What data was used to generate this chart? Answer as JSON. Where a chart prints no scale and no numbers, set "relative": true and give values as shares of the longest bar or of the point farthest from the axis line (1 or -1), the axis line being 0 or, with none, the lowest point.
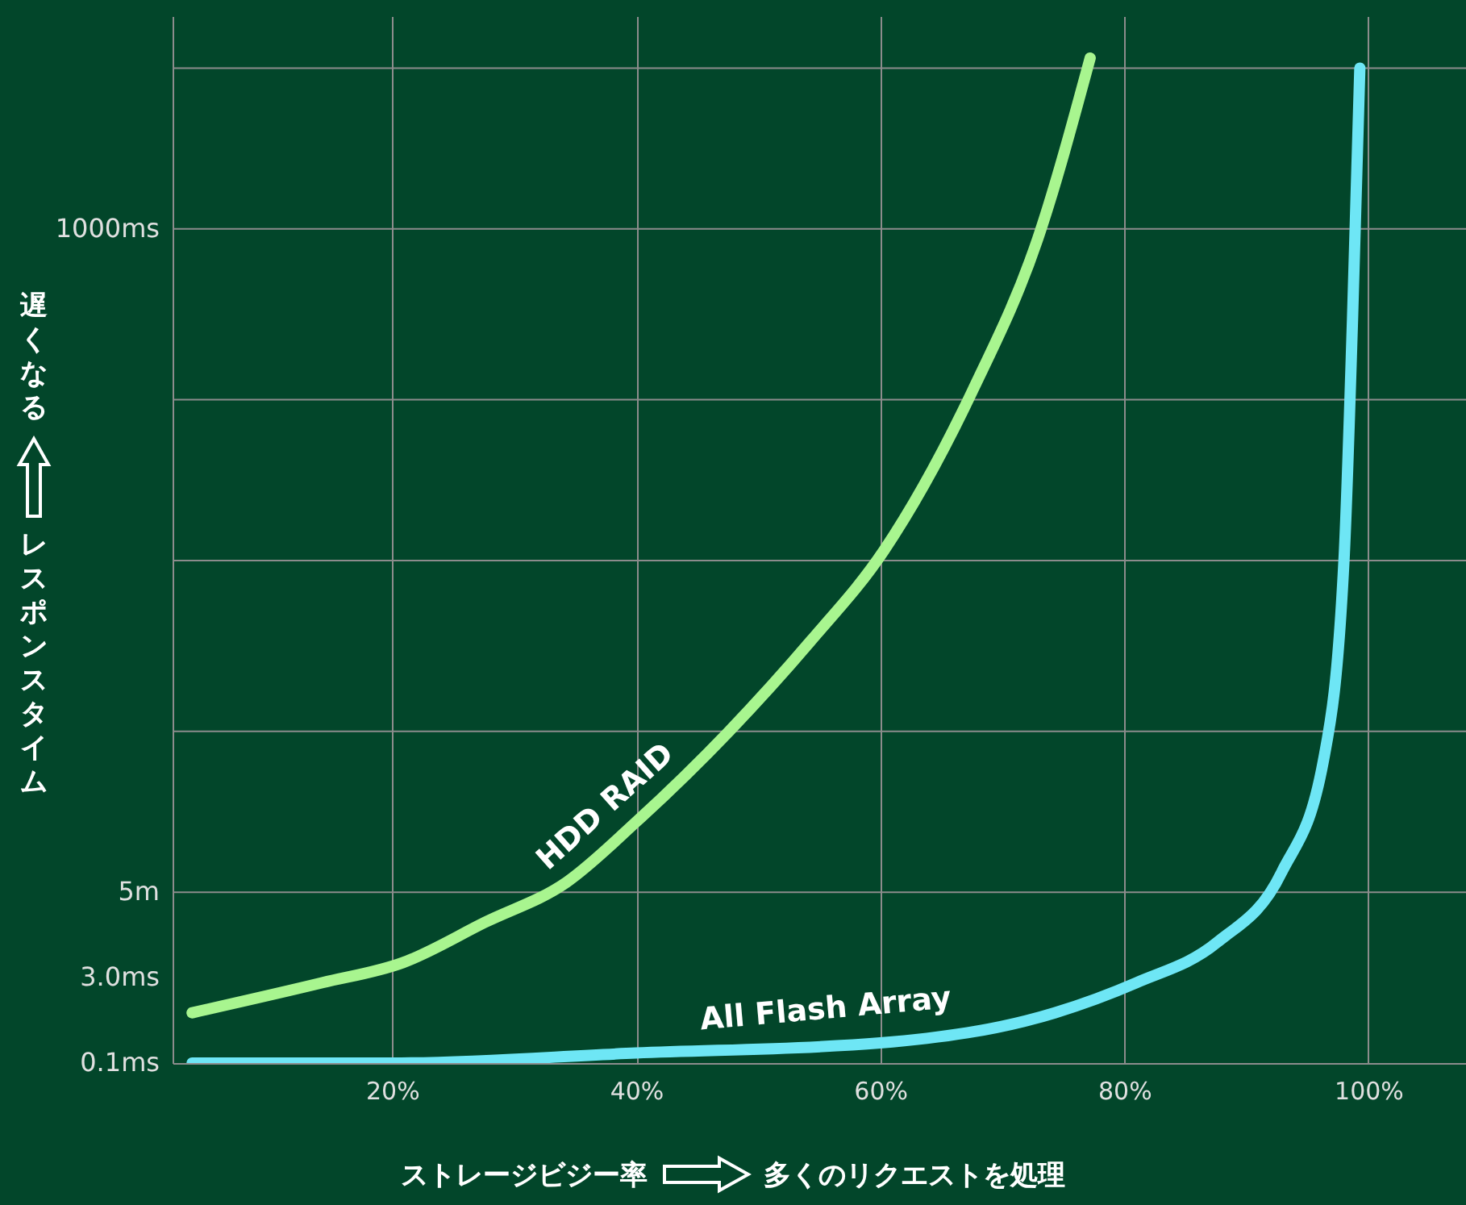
{
  "chart_data": {
    "type": "line",
    "xlabel": "ストレージビジー率",
    "ylabel": "レスポンスタイム",
    "annotations": [
      "遅くなる",
      "多くのリクエストを処理",
      "0.1ms",
      "3.0ms"
    ],
    "relative": true,
    "xlim": [
      2,
      108
    ],
    "xticks": [
      {
        "value": 20,
        "label": "20%"
      },
      {
        "value": 40,
        "label": "40%"
      },
      {
        "value": 60,
        "label": "60%"
      },
      {
        "value": 80,
        "label": "80%"
      },
      {
        "value": 100,
        "label": "100%"
      }
    ],
    "grid": "x",
    "line_style": "solid",
    "ref_lines": [
      {
        "axis": "y",
        "value": 0.17,
        "label": "5m"
      },
      {
        "axis": "y",
        "value": 0.33
      },
      {
        "axis": "y",
        "value": 0.5
      },
      {
        "axis": "y",
        "value": 0.66
      },
      {
        "axis": "y",
        "value": 0.83,
        "label": "1000ms"
      },
      {
        "axis": "y",
        "value": 0.99
      }
    ],
    "series": [
      {
        "name": "HDD RAID",
        "color": "#a8f58f",
        "x": [
          3.6,
          14.3,
          20.9,
          27.6,
          34.3,
          40,
          47.6,
          54.3,
          60.3,
          67.6,
          72.9,
          77.2
        ],
        "values": [
          0.05,
          0.08,
          0.1,
          0.14,
          0.18,
          0.24,
          0.33,
          0.42,
          0.51,
          0.67,
          0.82,
          1
        ]
      },
      {
        "name": "All Flash Array",
        "color": "#6ee6f5",
        "x": [
          3.6,
          20,
          40,
          60,
          74.3,
          81,
          87.6,
          92.9,
          96.3,
          98,
          98.7,
          99.3
        ],
        "values": [
          0,
          0,
          0.01,
          0.02,
          0.05,
          0.08,
          0.12,
          0.19,
          0.3,
          0.5,
          0.74,
          0.99
        ]
      }
    ]
  }
}
